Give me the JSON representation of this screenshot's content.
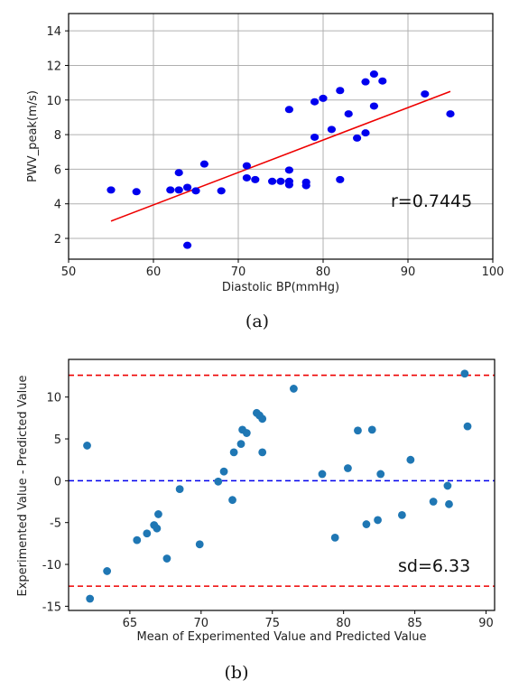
{
  "chart_data": [
    {
      "type": "scatter",
      "caption": "(a)",
      "xlabel": "Diastolic BP(mmHg)",
      "ylabel": "PWV_peak(m/s)",
      "xlim": [
        50,
        100
      ],
      "ylim": [
        0.8,
        15
      ],
      "xticks": [
        50,
        60,
        70,
        80,
        90,
        100
      ],
      "yticks": [
        2,
        4,
        6,
        8,
        10,
        12,
        14
      ],
      "grid": true,
      "annotation": "r=0.7445",
      "colors": {
        "points": "#0000ee",
        "fit": "#ee0000"
      },
      "points": [
        [
          55,
          4.8
        ],
        [
          58,
          4.7
        ],
        [
          62,
          4.8
        ],
        [
          63,
          5.8
        ],
        [
          63,
          4.8
        ],
        [
          64,
          4.95
        ],
        [
          64,
          1.6
        ],
        [
          65,
          4.75
        ],
        [
          66,
          6.3
        ],
        [
          68,
          4.75
        ],
        [
          71,
          6.2
        ],
        [
          71,
          5.5
        ],
        [
          72,
          5.4
        ],
        [
          74,
          5.3
        ],
        [
          75,
          5.3
        ],
        [
          76,
          5.3
        ],
        [
          76,
          5.1
        ],
        [
          76,
          5.95
        ],
        [
          76,
          9.45
        ],
        [
          78,
          5.25
        ],
        [
          78,
          5.05
        ],
        [
          79,
          7.85
        ],
        [
          79,
          9.9
        ],
        [
          80,
          10.1
        ],
        [
          81,
          8.3
        ],
        [
          82,
          10.55
        ],
        [
          82,
          5.4
        ],
        [
          83,
          9.2
        ],
        [
          84,
          7.8
        ],
        [
          85,
          8.1
        ],
        [
          85,
          11.05
        ],
        [
          86,
          11.5
        ],
        [
          86,
          9.65
        ],
        [
          87,
          11.1
        ],
        [
          92,
          10.35
        ],
        [
          95,
          9.2
        ]
      ],
      "fit_line": {
        "x": [
          55,
          95
        ],
        "y": [
          3.0,
          10.5
        ]
      }
    },
    {
      "type": "scatter",
      "caption": "(b)",
      "xlabel": "Mean of Experimented Value and Predicted Value",
      "ylabel": "Experimented Value - Predicted Value",
      "xlim": [
        60.7,
        90.6
      ],
      "ylim": [
        -15.5,
        14.5
      ],
      "xticks": [
        65,
        70,
        75,
        80,
        85,
        90
      ],
      "yticks": [
        -15,
        -10,
        -5,
        0,
        5,
        10
      ],
      "grid": false,
      "annotation": "sd=6.33",
      "colors": {
        "points": "#1f77b4",
        "limits": "#ee0000",
        "mean": "#0000ee"
      },
      "reference_lines": {
        "upper": 12.6,
        "mean": 0,
        "lower": -12.6
      },
      "points": [
        [
          62.0,
          4.2
        ],
        [
          62.2,
          -14.1
        ],
        [
          63.4,
          -10.8
        ],
        [
          65.5,
          -7.1
        ],
        [
          66.2,
          -6.3
        ],
        [
          66.7,
          -5.3
        ],
        [
          66.9,
          -5.7
        ],
        [
          67.0,
          -4.0
        ],
        [
          67.6,
          -9.3
        ],
        [
          68.5,
          -1.0
        ],
        [
          69.9,
          -7.6
        ],
        [
          71.2,
          -0.1
        ],
        [
          71.6,
          1.1
        ],
        [
          72.2,
          -2.3
        ],
        [
          72.3,
          3.4
        ],
        [
          72.8,
          4.4
        ],
        [
          72.9,
          6.1
        ],
        [
          73.2,
          5.7
        ],
        [
          73.9,
          8.1
        ],
        [
          74.1,
          7.8
        ],
        [
          74.3,
          7.4
        ],
        [
          74.3,
          3.4
        ],
        [
          76.5,
          11.0
        ],
        [
          78.5,
          0.8
        ],
        [
          79.4,
          -6.8
        ],
        [
          80.3,
          1.5
        ],
        [
          81.0,
          6.0
        ],
        [
          81.6,
          -5.2
        ],
        [
          82.0,
          6.1
        ],
        [
          82.4,
          -4.7
        ],
        [
          82.6,
          0.8
        ],
        [
          84.1,
          -4.1
        ],
        [
          84.7,
          2.5
        ],
        [
          86.3,
          -2.5
        ],
        [
          87.3,
          -0.6
        ],
        [
          87.4,
          -2.8
        ],
        [
          88.5,
          12.8
        ],
        [
          88.7,
          6.5
        ]
      ]
    }
  ]
}
